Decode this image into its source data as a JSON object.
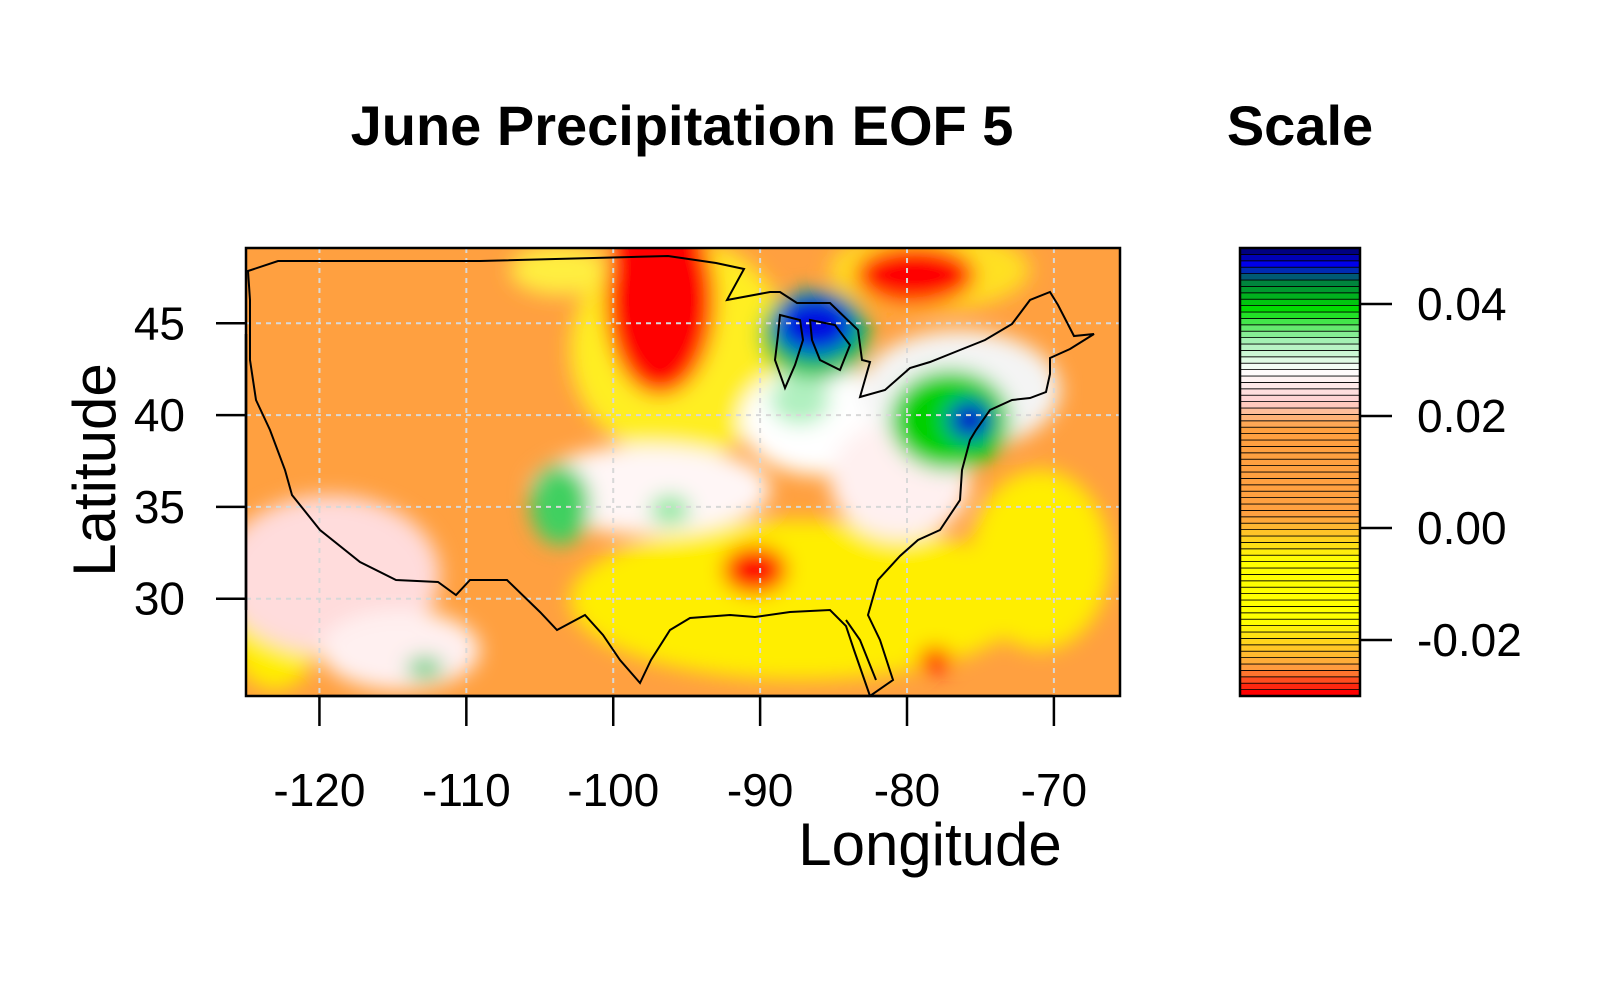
{
  "chart_data": [
    {
      "type": "heatmap",
      "title": "June Precipitation EOF 5",
      "xlabel": "Longitude",
      "ylabel": "Latitude",
      "xlim": [
        -125,
        -65.5
      ],
      "ylim": [
        24.7,
        49.1
      ],
      "x_ticks": [
        -120,
        -110,
        -100,
        -90,
        -80,
        -70
      ],
      "y_ticks": [
        30,
        35,
        40,
        45
      ],
      "x_tick_labels": [
        "-120",
        "-110",
        "-100",
        "-90",
        "-80",
        "-70"
      ],
      "y_tick_labels": [
        "30",
        "35",
        "40",
        "45"
      ],
      "grid": true,
      "background_value": -0.008,
      "features": [
        {
          "name": "northern-plains-negative",
          "lon": -96,
          "lat": 44.5,
          "value": -0.03
        },
        {
          "name": "minnesota-positive",
          "lon": -86,
          "lat": 45.3,
          "value": 0.045
        },
        {
          "name": "new-york-positive",
          "lon": -76,
          "lat": 40.5,
          "value": 0.04
        },
        {
          "name": "ohio-valley-positive",
          "lon": -84,
          "lat": 40,
          "value": 0.022
        },
        {
          "name": "great-lakes-negative",
          "lon": -80,
          "lat": 47.5,
          "value": -0.03
        },
        {
          "name": "louisiana-negative",
          "lon": -91,
          "lat": 31,
          "value": -0.03
        },
        {
          "name": "bahamas-negative",
          "lon": -78,
          "lat": 27,
          "value": -0.03
        },
        {
          "name": "new-mexico-positive",
          "lon": -103,
          "lat": 35,
          "value": 0.022
        },
        {
          "name": "southwest-positive",
          "lon": -115,
          "lat": 32,
          "value": 0.004
        },
        {
          "name": "baja-positive",
          "lon": -112,
          "lat": 27,
          "value": 0.022
        }
      ]
    },
    {
      "type": "colorbar",
      "title": "Scale",
      "range": [
        -0.03,
        0.05
      ],
      "ticks": [
        0.04,
        0.02,
        0.0,
        -0.02
      ],
      "tick_labels": [
        "0.04",
        "0.02",
        "0.00",
        "-0.02"
      ],
      "colors": {
        "min_red": "#ff0000",
        "orange": "#ffa040",
        "yellow": "#ffff00",
        "pink": "#ffd0d0",
        "white": "#ffffff",
        "light_green": "#a0f0b0",
        "green": "#00dd00",
        "dark_green": "#008040",
        "blue": "#0000ee",
        "max_navy": "#000080"
      }
    }
  ]
}
